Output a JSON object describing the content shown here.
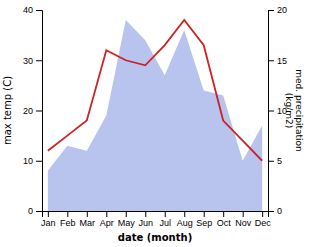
{
  "chart_data": {
    "type": "line",
    "categories": [
      "Jan",
      "Feb",
      "Mar",
      "Apr",
      "May",
      "Jun",
      "Jul",
      "Aug",
      "Sep",
      "Oct",
      "Nov",
      "Dec"
    ],
    "series": [
      {
        "type": "area",
        "color": "#b8c4ee",
        "values": [
          8,
          13,
          12,
          19,
          38,
          34,
          27,
          36,
          24,
          23,
          10,
          17
        ]
      },
      {
        "type": "line",
        "color": "#cc2222",
        "values": [
          12,
          15,
          18,
          32,
          30,
          29,
          33,
          38,
          33,
          18,
          14,
          10
        ]
      }
    ],
    "xlabel": "date (month)",
    "ylabel": "max temp (C)",
    "y2label": "med. precipitation\n(kg/m2)",
    "ylim": [
      0,
      40
    ],
    "yticks": [
      0,
      10,
      20,
      30,
      40
    ],
    "y2lim": [
      0,
      20
    ],
    "y2ticks": [
      0,
      5,
      10,
      15,
      20
    ],
    "grid": false
  }
}
